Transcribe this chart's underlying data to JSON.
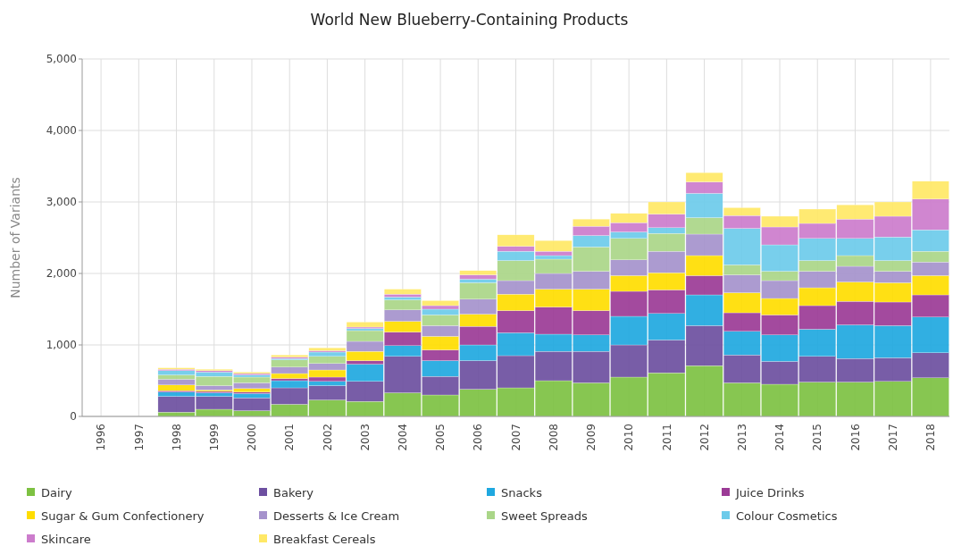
{
  "chart_data": {
    "type": "bar",
    "title": "World New Blueberry-Containing Products",
    "ylabel": "Number of Variants",
    "stacked": true,
    "grid": true,
    "legend": "bottom",
    "categories": [
      "1996",
      "1997",
      "1998",
      "1999",
      "2000",
      "2001",
      "2002",
      "2003",
      "2004",
      "2005",
      "2006",
      "2007",
      "2008",
      "2009",
      "2010",
      "2011",
      "2012",
      "2013",
      "2014",
      "2015",
      "2016",
      "2017",
      "2018"
    ],
    "ylim": [
      0,
      5000
    ],
    "yticks": [
      {
        "value": 0,
        "label": "0"
      },
      {
        "value": 1000,
        "label": "1,000"
      },
      {
        "value": 2000,
        "label": "2,000"
      },
      {
        "value": 3000,
        "label": "3,000"
      },
      {
        "value": 4000,
        "label": "4,000"
      },
      {
        "value": 5000,
        "label": "5,000"
      }
    ],
    "series": [
      {
        "name": "Dairy",
        "color": "#7dc142",
        "values": [
          0,
          0,
          60,
          100,
          80,
          170,
          230,
          210,
          330,
          300,
          380,
          400,
          500,
          470,
          550,
          610,
          710,
          470,
          450,
          480,
          480,
          490,
          540
        ]
      },
      {
        "name": "Bakery",
        "color": "#6d4fa0",
        "values": [
          0,
          0,
          220,
          180,
          180,
          230,
          200,
          280,
          510,
          260,
          400,
          450,
          410,
          440,
          450,
          460,
          560,
          390,
          320,
          360,
          330,
          330,
          350
        ]
      },
      {
        "name": "Snacks",
        "color": "#1fa8e0",
        "values": [
          0,
          0,
          60,
          50,
          60,
          100,
          60,
          240,
          150,
          220,
          220,
          320,
          240,
          230,
          400,
          370,
          430,
          330,
          370,
          380,
          470,
          450,
          500
        ]
      },
      {
        "name": "Juice Drinks",
        "color": "#9b3b96",
        "values": [
          0,
          0,
          20,
          20,
          20,
          30,
          60,
          50,
          190,
          150,
          260,
          310,
          380,
          340,
          350,
          330,
          270,
          260,
          280,
          330,
          330,
          330,
          310
        ]
      },
      {
        "name": "Sugar & Gum Confectionery",
        "color": "#ffdd00",
        "values": [
          0,
          0,
          80,
          20,
          50,
          70,
          100,
          130,
          150,
          190,
          170,
          230,
          250,
          300,
          220,
          240,
          280,
          280,
          230,
          250,
          270,
          270,
          270
        ]
      },
      {
        "name": "Desserts & Ice Cream",
        "color": "#a592cc",
        "values": [
          0,
          0,
          80,
          60,
          80,
          90,
          90,
          140,
          160,
          150,
          210,
          190,
          220,
          250,
          220,
          300,
          300,
          250,
          250,
          230,
          220,
          160,
          190
        ]
      },
      {
        "name": "Sweet Spreads",
        "color": "#aad688",
        "values": [
          0,
          0,
          60,
          130,
          80,
          100,
          100,
          150,
          140,
          150,
          230,
          280,
          200,
          340,
          300,
          250,
          230,
          140,
          130,
          150,
          150,
          150,
          150
        ]
      },
      {
        "name": "Colour Cosmetics",
        "color": "#6ccbea",
        "values": [
          0,
          0,
          60,
          60,
          30,
          20,
          60,
          30,
          40,
          80,
          50,
          130,
          50,
          160,
          90,
          80,
          340,
          510,
          370,
          310,
          240,
          330,
          300
        ]
      },
      {
        "name": "Skincare",
        "color": "#cc7ccc",
        "values": [
          0,
          0,
          20,
          20,
          20,
          20,
          20,
          20,
          40,
          50,
          60,
          70,
          60,
          130,
          130,
          190,
          160,
          180,
          250,
          210,
          270,
          290,
          430
        ]
      },
      {
        "name": "Breakfast Cereals",
        "color": "#ffe866",
        "values": [
          0,
          0,
          20,
          20,
          20,
          30,
          40,
          70,
          70,
          70,
          60,
          160,
          150,
          100,
          130,
          170,
          130,
          110,
          150,
          200,
          200,
          200,
          250
        ]
      }
    ]
  }
}
